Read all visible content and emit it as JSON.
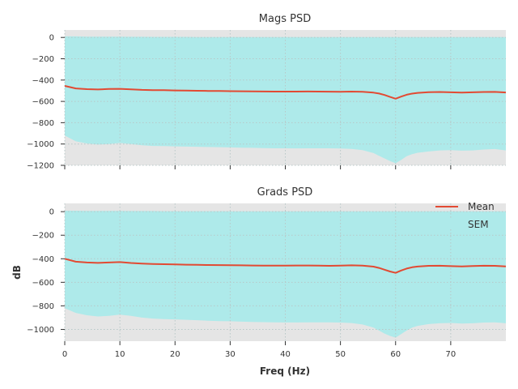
{
  "colors": {
    "figure_bg": "#ffffff",
    "axes_bg": "#e5e5e5",
    "grid": "#b8c8c8",
    "mean_line": "#e24a33",
    "sem_fill": "#aeeaea",
    "text": "#333333"
  },
  "chart_data": [
    {
      "type": "area",
      "title": "Mags PSD",
      "xlabel": "",
      "ylabel": "",
      "xlim": [
        0,
        80
      ],
      "ylim": [
        -1200,
        70
      ],
      "grid": true,
      "x_ticks": [
        0,
        10,
        20,
        30,
        40,
        50,
        60,
        70
      ],
      "x_tick_labels_shown": false,
      "y_ticks": [
        0,
        -200,
        -400,
        -600,
        -800,
        -1000,
        -1200
      ],
      "y_tick_labels": [
        "0",
        "−200",
        "−400",
        "−600",
        "−800",
        "−1000",
        "−1200"
      ],
      "x": [
        0,
        2,
        4,
        6,
        8,
        10,
        12,
        14,
        16,
        18,
        20,
        22,
        24,
        26,
        28,
        30,
        32,
        34,
        36,
        38,
        40,
        42,
        44,
        46,
        48,
        50,
        52,
        54,
        56,
        57,
        58,
        59,
        60,
        61,
        62,
        63,
        64,
        66,
        68,
        70,
        72,
        74,
        76,
        78,
        80
      ],
      "series": [
        {
          "name": "Mean",
          "values": [
            -455,
            -478,
            -485,
            -488,
            -484,
            -482,
            -487,
            -492,
            -494,
            -495,
            -497,
            -498,
            -500,
            -502,
            -503,
            -504,
            -505,
            -506,
            -507,
            -508,
            -508,
            -508,
            -507,
            -508,
            -509,
            -510,
            -508,
            -510,
            -518,
            -526,
            -540,
            -558,
            -575,
            -555,
            -538,
            -527,
            -520,
            -514,
            -512,
            -515,
            -518,
            -515,
            -512,
            -511,
            -516
          ]
        },
        {
          "name": "SEM",
          "upper": [
            10,
            10,
            8,
            8,
            7,
            7,
            6,
            6,
            5,
            5,
            5,
            5,
            4,
            4,
            4,
            4,
            4,
            4,
            4,
            3,
            3,
            3,
            3,
            3,
            3,
            3,
            3,
            3,
            3,
            3,
            3,
            3,
            3,
            3,
            3,
            3,
            3,
            3,
            3,
            3,
            3,
            3,
            3,
            3,
            3
          ],
          "lower": [
            -920,
            -975,
            -995,
            -1005,
            -1000,
            -990,
            -1000,
            -1012,
            -1018,
            -1020,
            -1022,
            -1024,
            -1026,
            -1028,
            -1030,
            -1032,
            -1034,
            -1036,
            -1038,
            -1040,
            -1040,
            -1041,
            -1040,
            -1040,
            -1040,
            -1042,
            -1046,
            -1058,
            -1085,
            -1110,
            -1135,
            -1160,
            -1180,
            -1150,
            -1115,
            -1095,
            -1082,
            -1070,
            -1060,
            -1058,
            -1062,
            -1060,
            -1052,
            -1047,
            -1060
          ]
        }
      ]
    },
    {
      "type": "area",
      "title": "Grads PSD",
      "xlabel": "Freq (Hz)",
      "ylabel": "dB",
      "xlim": [
        0,
        80
      ],
      "ylim": [
        -1100,
        70
      ],
      "grid": true,
      "x_ticks": [
        0,
        10,
        20,
        30,
        40,
        50,
        60,
        70
      ],
      "x_tick_labels": [
        "0",
        "10",
        "20",
        "30",
        "40",
        "50",
        "60",
        "70"
      ],
      "y_ticks": [
        0,
        -200,
        -400,
        -600,
        -800,
        -1000
      ],
      "y_tick_labels": [
        "0",
        "−200",
        "−400",
        "−600",
        "−800",
        "−1000"
      ],
      "legend_position": "top-right",
      "legend": [
        "Mean",
        "SEM"
      ],
      "x": [
        0,
        2,
        4,
        6,
        8,
        10,
        12,
        14,
        16,
        18,
        20,
        22,
        24,
        26,
        28,
        30,
        32,
        34,
        36,
        38,
        40,
        42,
        44,
        46,
        48,
        50,
        52,
        54,
        56,
        57,
        58,
        59,
        60,
        61,
        62,
        63,
        64,
        66,
        68,
        70,
        72,
        74,
        76,
        78,
        80
      ],
      "series": [
        {
          "name": "Mean",
          "values": [
            -400,
            -425,
            -432,
            -435,
            -432,
            -428,
            -436,
            -441,
            -444,
            -446,
            -448,
            -450,
            -452,
            -453,
            -454,
            -455,
            -456,
            -457,
            -458,
            -458,
            -458,
            -457,
            -457,
            -458,
            -460,
            -458,
            -456,
            -458,
            -467,
            -478,
            -493,
            -508,
            -520,
            -500,
            -483,
            -472,
            -466,
            -460,
            -459,
            -463,
            -465,
            -462,
            -459,
            -460,
            -465
          ]
        },
        {
          "name": "SEM",
          "upper": [
            8,
            8,
            7,
            7,
            6,
            6,
            5,
            5,
            5,
            4,
            4,
            4,
            4,
            4,
            4,
            3,
            3,
            3,
            3,
            3,
            3,
            3,
            3,
            3,
            3,
            3,
            3,
            3,
            3,
            3,
            3,
            3,
            3,
            3,
            3,
            3,
            3,
            3,
            3,
            3,
            3,
            3,
            3,
            3,
            3
          ],
          "lower": [
            -820,
            -860,
            -880,
            -890,
            -885,
            -875,
            -885,
            -900,
            -908,
            -912,
            -915,
            -918,
            -922,
            -926,
            -929,
            -931,
            -934,
            -936,
            -938,
            -940,
            -941,
            -941,
            -940,
            -940,
            -940,
            -942,
            -946,
            -958,
            -985,
            -1010,
            -1035,
            -1055,
            -1070,
            -1040,
            -1010,
            -985,
            -970,
            -955,
            -948,
            -945,
            -950,
            -948,
            -942,
            -940,
            -948
          ]
        }
      ]
    }
  ]
}
